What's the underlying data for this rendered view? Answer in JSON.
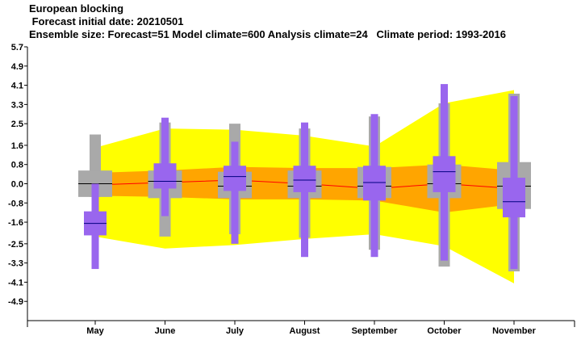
{
  "chart_data": {
    "type": "box",
    "title": "European blocking",
    "subtitle_lines": [
      " Forecast initial date: 20210501",
      "Ensemble size: Forecast=51 Model climate=600 Analysis climate=24   Climate period: 1993-2016"
    ],
    "categories": [
      "May",
      "June",
      "July",
      "August",
      "September",
      "October",
      "November"
    ],
    "y_ticks": [
      "5.7",
      "4.9",
      "4.1",
      "3.3",
      "2.5",
      "1.6",
      "0.8",
      "0.0",
      "-0.8",
      "-1.6",
      "-2.5",
      "-3.3",
      "-4.1",
      "-4.9"
    ],
    "ylim": [
      -5.7,
      5.7
    ],
    "colors": {
      "climate_outer_band": "#ffff00",
      "climate_inner_band": "#ffa500",
      "climate_median_line": "#ff0000",
      "model_climate_box": "#a9a9a9",
      "forecast_box": "#9966ee",
      "median_marker": "#000000",
      "forecast_median_marker": "#000080"
    },
    "climate_band": {
      "outer_upper": [
        1.5,
        2.3,
        2.25,
        2.0,
        1.55,
        3.35,
        3.9
      ],
      "outer_lower": [
        -2.2,
        -2.7,
        -2.55,
        -2.3,
        -2.1,
        -2.6,
        -4.15
      ],
      "inner_upper": [
        0.45,
        0.55,
        0.7,
        0.65,
        0.65,
        0.8,
        0.55
      ],
      "inner_lower": [
        -0.5,
        -0.55,
        -0.65,
        -0.65,
        -0.7,
        -1.2,
        -0.85
      ],
      "median": [
        -0.05,
        0.05,
        0.15,
        0.0,
        -0.2,
        0.0,
        -0.2
      ]
    },
    "model_climate": [
      {
        "min": -0.55,
        "q1": -0.55,
        "q3": 0.55,
        "max": 2.05,
        "median": 0.0
      },
      {
        "min": -2.2,
        "q1": -0.6,
        "q3": 0.55,
        "max": 2.55,
        "median": 0.1
      },
      {
        "min": -2.1,
        "q1": -0.6,
        "q3": 0.5,
        "max": 2.5,
        "median": -0.1
      },
      {
        "min": -2.25,
        "q1": -0.6,
        "q3": 0.55,
        "max": 2.3,
        "median": -0.1
      },
      {
        "min": -2.75,
        "q1": -0.6,
        "q3": 0.7,
        "max": 2.8,
        "median": -0.1
      },
      {
        "min": -3.45,
        "q1": -0.6,
        "q3": 0.8,
        "max": 3.35,
        "median": 0.0
      },
      {
        "min": -3.65,
        "q1": -1.05,
        "q3": 0.9,
        "max": 3.75,
        "median": -0.1
      }
    ],
    "forecast": [
      {
        "min": -3.55,
        "q1": -2.15,
        "q3": -1.15,
        "max": 0.0,
        "median": -1.65
      },
      {
        "min": -1.35,
        "q1": -0.2,
        "q3": 0.85,
        "max": 2.75,
        "median": 0.1
      },
      {
        "min": -2.5,
        "q1": -0.3,
        "q3": 0.75,
        "max": 1.75,
        "median": 0.3
      },
      {
        "min": -3.05,
        "q1": -0.35,
        "q3": 0.75,
        "max": 2.55,
        "median": 0.15
      },
      {
        "min": -3.05,
        "q1": -0.7,
        "q3": 0.75,
        "max": 2.9,
        "median": 0.05
      },
      {
        "min": -3.2,
        "q1": -0.35,
        "q3": 1.15,
        "max": 4.15,
        "median": 0.5
      },
      {
        "min": -3.55,
        "q1": -1.4,
        "q3": 0.25,
        "max": 3.65,
        "median": -0.75
      }
    ]
  }
}
